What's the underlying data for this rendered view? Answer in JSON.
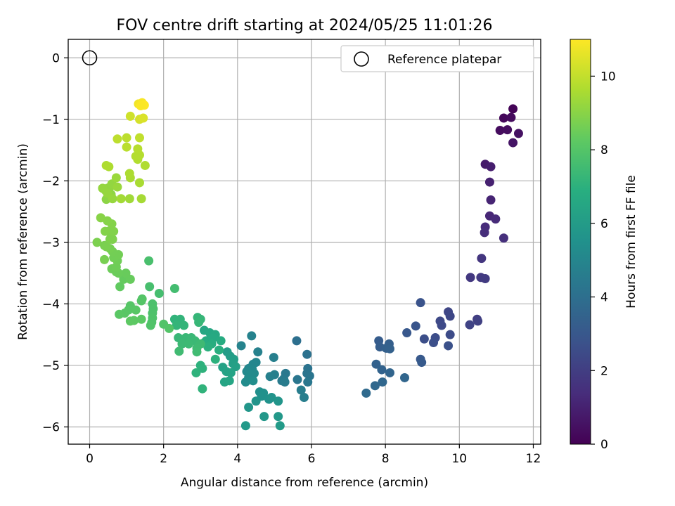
{
  "chart_data": {
    "type": "scatter",
    "title": "FOV centre drift starting at 2024/05/25 11:01:26",
    "xlabel": "Angular distance from reference (arcmin)",
    "ylabel": "Rotation from reference (arcmin)",
    "xlim": [
      -0.58,
      12.2
    ],
    "ylim": [
      -6.28,
      0.3
    ],
    "xticks": [
      0,
      2,
      4,
      6,
      8,
      10,
      12
    ],
    "yticks": [
      0,
      -1,
      -2,
      -3,
      -4,
      -5,
      -6
    ],
    "grid": true,
    "legend": {
      "placement": "top-right",
      "entries": [
        "Reference platepar"
      ]
    },
    "reference_point": {
      "x": 0,
      "y": 0
    },
    "colorbar": {
      "label": "Hours from first FF file",
      "range": [
        0,
        11
      ],
      "ticks": [
        0,
        2,
        4,
        6,
        8,
        10
      ],
      "colormap": "viridis"
    },
    "points": [
      [
        11.45,
        -0.83,
        0.1
      ],
      [
        11.2,
        -0.98,
        0.2
      ],
      [
        11.4,
        -0.97,
        0.3
      ],
      [
        11.1,
        -1.18,
        0.35
      ],
      [
        11.3,
        -1.17,
        0.4
      ],
      [
        11.6,
        -1.23,
        0.5
      ],
      [
        11.45,
        -1.38,
        0.6
      ],
      [
        10.7,
        -1.73,
        0.8
      ],
      [
        10.85,
        -1.77,
        0.9
      ],
      [
        10.82,
        -2.02,
        1.0
      ],
      [
        10.85,
        -2.31,
        1.1
      ],
      [
        10.82,
        -2.57,
        1.2
      ],
      [
        10.98,
        -2.62,
        1.3
      ],
      [
        10.7,
        -2.75,
        1.35
      ],
      [
        10.68,
        -2.84,
        1.4
      ],
      [
        11.2,
        -2.93,
        1.5
      ],
      [
        10.6,
        -3.26,
        1.7
      ],
      [
        10.3,
        -3.57,
        1.8
      ],
      [
        10.58,
        -3.57,
        1.85
      ],
      [
        10.7,
        -3.59,
        1.9
      ],
      [
        10.48,
        -4.25,
        2.0
      ],
      [
        10.5,
        -4.28,
        2.1
      ],
      [
        10.28,
        -4.34,
        2.2
      ],
      [
        9.7,
        -4.13,
        2.3
      ],
      [
        9.75,
        -4.2,
        2.35
      ],
      [
        9.48,
        -4.28,
        2.4
      ],
      [
        9.52,
        -4.35,
        2.45
      ],
      [
        9.75,
        -4.5,
        2.5
      ],
      [
        9.35,
        -4.55,
        2.55
      ],
      [
        9.05,
        -4.57,
        2.6
      ],
      [
        9.3,
        -4.63,
        2.65
      ],
      [
        9.7,
        -4.68,
        2.7
      ],
      [
        8.95,
        -3.98,
        2.8
      ],
      [
        8.82,
        -4.36,
        2.9
      ],
      [
        8.58,
        -4.47,
        3.0
      ],
      [
        8.95,
        -4.9,
        3.05
      ],
      [
        8.98,
        -4.95,
        3.1
      ],
      [
        7.82,
        -4.6,
        3.2
      ],
      [
        7.85,
        -4.7,
        3.25
      ],
      [
        8.1,
        -4.65,
        3.3
      ],
      [
        8.02,
        -4.72,
        3.35
      ],
      [
        8.12,
        -4.73,
        3.4
      ],
      [
        7.75,
        -4.98,
        3.45
      ],
      [
        7.9,
        -5.07,
        3.5
      ],
      [
        8.12,
        -5.12,
        3.55
      ],
      [
        8.52,
        -5.2,
        3.6
      ],
      [
        7.92,
        -5.27,
        3.65
      ],
      [
        7.72,
        -5.33,
        3.7
      ],
      [
        7.48,
        -5.45,
        3.8
      ],
      [
        5.6,
        -4.6,
        4.0
      ],
      [
        5.88,
        -4.82,
        4.1
      ],
      [
        5.9,
        -5.05,
        4.15
      ],
      [
        5.88,
        -5.13,
        4.2
      ],
      [
        5.95,
        -5.17,
        4.25
      ],
      [
        5.62,
        -5.23,
        4.3
      ],
      [
        5.9,
        -5.27,
        4.35
      ],
      [
        5.3,
        -5.13,
        4.4
      ],
      [
        5.25,
        -5.22,
        4.45
      ],
      [
        5.2,
        -5.25,
        4.5
      ],
      [
        5.28,
        -5.27,
        4.55
      ],
      [
        5.72,
        -5.4,
        4.6
      ],
      [
        5.8,
        -5.52,
        4.65
      ],
      [
        4.98,
        -4.87,
        4.7
      ],
      [
        5.0,
        -5.15,
        4.72
      ],
      [
        4.88,
        -5.18,
        4.75
      ],
      [
        4.55,
        -4.78,
        4.8
      ],
      [
        4.38,
        -4.52,
        4.85
      ],
      [
        4.1,
        -4.68,
        4.9
      ],
      [
        4.5,
        -4.95,
        4.95
      ],
      [
        4.42,
        -4.98,
        5.0
      ],
      [
        4.3,
        -5.05,
        5.05
      ],
      [
        4.4,
        -5.07,
        5.1
      ],
      [
        4.25,
        -5.1,
        5.15
      ],
      [
        4.45,
        -5.13,
        5.2
      ],
      [
        4.35,
        -5.15,
        5.22
      ],
      [
        4.3,
        -5.2,
        5.25
      ],
      [
        4.22,
        -5.27,
        5.3
      ],
      [
        4.42,
        -5.25,
        5.35
      ],
      [
        4.6,
        -5.43,
        5.4
      ],
      [
        4.7,
        -5.45,
        5.45
      ],
      [
        4.65,
        -5.5,
        5.5
      ],
      [
        4.85,
        -5.55,
        5.55
      ],
      [
        4.92,
        -5.52,
        5.6
      ],
      [
        4.5,
        -5.58,
        5.65
      ],
      [
        5.1,
        -5.58,
        5.7
      ],
      [
        4.3,
        -5.68,
        5.75
      ],
      [
        4.72,
        -5.83,
        5.8
      ],
      [
        5.1,
        -5.83,
        5.85
      ],
      [
        4.22,
        -5.98,
        5.9
      ],
      [
        5.15,
        -5.98,
        5.95
      ],
      [
        3.72,
        -4.78,
        6.0
      ],
      [
        3.8,
        -4.85,
        6.05
      ],
      [
        3.9,
        -4.9,
        6.1
      ],
      [
        3.88,
        -4.97,
        6.15
      ],
      [
        3.95,
        -5.02,
        6.2
      ],
      [
        3.6,
        -5.03,
        6.25
      ],
      [
        3.7,
        -5.1,
        6.3
      ],
      [
        3.82,
        -5.12,
        6.35
      ],
      [
        3.65,
        -5.27,
        6.4
      ],
      [
        3.78,
        -5.25,
        6.45
      ],
      [
        3.1,
        -4.43,
        6.5
      ],
      [
        3.25,
        -4.47,
        6.55
      ],
      [
        3.4,
        -4.5,
        6.6
      ],
      [
        3.35,
        -4.55,
        6.65
      ],
      [
        3.15,
        -4.6,
        6.7
      ],
      [
        3.55,
        -4.6,
        6.75
      ],
      [
        3.1,
        -4.63,
        6.8
      ],
      [
        3.3,
        -4.65,
        6.85
      ],
      [
        3.5,
        -4.75,
        6.9
      ],
      [
        3.2,
        -4.7,
        6.95
      ],
      [
        3.4,
        -4.9,
        7.0
      ],
      [
        3.0,
        -5.0,
        7.02
      ],
      [
        3.05,
        -5.05,
        7.05
      ],
      [
        2.88,
        -5.12,
        7.08
      ],
      [
        3.05,
        -5.38,
        7.1
      ],
      [
        2.3,
        -4.25,
        7.12
      ],
      [
        2.45,
        -4.25,
        7.15
      ],
      [
        2.55,
        -4.35,
        7.18
      ],
      [
        2.35,
        -4.35,
        7.2
      ],
      [
        2.92,
        -4.22,
        7.22
      ],
      [
        3.0,
        -4.25,
        7.25
      ],
      [
        2.95,
        -4.3,
        7.28
      ],
      [
        2.4,
        -4.55,
        7.3
      ],
      [
        2.6,
        -4.55,
        7.32
      ],
      [
        2.75,
        -4.55,
        7.35
      ],
      [
        2.85,
        -4.6,
        7.38
      ],
      [
        2.5,
        -4.65,
        7.4
      ],
      [
        2.68,
        -4.65,
        7.42
      ],
      [
        3.0,
        -4.65,
        7.45
      ],
      [
        2.9,
        -4.72,
        7.48
      ],
      [
        2.42,
        -4.77,
        7.5
      ],
      [
        2.9,
        -4.78,
        7.52
      ],
      [
        2.3,
        -3.75,
        7.6
      ],
      [
        1.88,
        -3.83,
        7.65
      ],
      [
        1.62,
        -3.72,
        7.7
      ],
      [
        1.6,
        -3.3,
        7.75
      ],
      [
        1.7,
        -4.0,
        7.8
      ],
      [
        1.72,
        -4.08,
        7.82
      ],
      [
        1.7,
        -4.15,
        7.85
      ],
      [
        1.7,
        -4.23,
        7.88
      ],
      [
        1.68,
        -4.3,
        7.9
      ],
      [
        1.65,
        -4.35,
        7.92
      ],
      [
        2.0,
        -4.33,
        7.95
      ],
      [
        2.15,
        -4.4,
        7.98
      ],
      [
        1.42,
        -3.92,
        8.0
      ],
      [
        1.4,
        -3.95,
        8.02
      ],
      [
        1.1,
        -4.03,
        8.05
      ],
      [
        1.05,
        -4.1,
        8.08
      ],
      [
        1.25,
        -4.1,
        8.1
      ],
      [
        0.95,
        -4.15,
        8.12
      ],
      [
        0.8,
        -4.17,
        8.15
      ],
      [
        1.4,
        -4.25,
        8.18
      ],
      [
        1.2,
        -4.27,
        8.2
      ],
      [
        1.1,
        -4.28,
        8.22
      ],
      [
        0.82,
        -3.72,
        8.3
      ],
      [
        0.92,
        -3.6,
        8.35
      ],
      [
        1.1,
        -3.6,
        8.4
      ],
      [
        0.98,
        -3.5,
        8.42
      ],
      [
        0.78,
        -3.5,
        8.45
      ],
      [
        0.72,
        -3.48,
        8.48
      ],
      [
        0.6,
        -3.43,
        8.5
      ],
      [
        0.72,
        -3.4,
        8.52
      ],
      [
        0.75,
        -3.3,
        8.55
      ],
      [
        0.65,
        -3.25,
        8.58
      ],
      [
        0.78,
        -3.2,
        8.6
      ],
      [
        0.62,
        -3.15,
        8.62
      ],
      [
        0.55,
        -3.1,
        8.65
      ],
      [
        0.4,
        -3.28,
        8.7
      ],
      [
        0.4,
        -3.05,
        8.72
      ],
      [
        0.45,
        -3.07,
        8.75
      ],
      [
        0.2,
        -3.0,
        8.78
      ],
      [
        0.55,
        -2.95,
        8.8
      ],
      [
        0.62,
        -2.95,
        8.82
      ],
      [
        0.5,
        -2.82,
        8.85
      ],
      [
        0.65,
        -2.82,
        8.88
      ],
      [
        0.42,
        -2.82,
        8.9
      ],
      [
        0.6,
        -2.7,
        8.92
      ],
      [
        0.48,
        -2.65,
        8.95
      ],
      [
        0.3,
        -2.6,
        8.98
      ],
      [
        0.52,
        -2.25,
        9.0
      ],
      [
        0.45,
        -2.3,
        9.05
      ],
      [
        0.58,
        -2.22,
        9.08
      ],
      [
        0.42,
        -2.15,
        9.1
      ],
      [
        0.48,
        -2.12,
        9.12
      ],
      [
        0.55,
        -2.1,
        9.15
      ],
      [
        0.6,
        -2.05,
        9.18
      ],
      [
        0.35,
        -2.12,
        9.2
      ],
      [
        0.48,
        -2.2,
        9.22
      ],
      [
        0.62,
        -2.29,
        9.25
      ],
      [
        0.75,
        -2.1,
        9.28
      ],
      [
        0.72,
        -1.95,
        9.3
      ],
      [
        1.08,
        -2.29,
        9.4
      ],
      [
        0.85,
        -2.29,
        9.45
      ],
      [
        1.4,
        -2.29,
        9.5
      ],
      [
        1.35,
        -2.03,
        9.55
      ],
      [
        1.1,
        -1.95,
        9.58
      ],
      [
        1.08,
        -1.88,
        9.6
      ],
      [
        0.52,
        -1.77,
        9.62
      ],
      [
        0.45,
        -1.75,
        9.65
      ],
      [
        1.5,
        -1.75,
        9.68
      ],
      [
        1.3,
        -1.65,
        9.7
      ],
      [
        1.25,
        -1.6,
        9.72
      ],
      [
        1.35,
        -1.58,
        9.75
      ],
      [
        1.3,
        -1.48,
        9.78
      ],
      [
        1.0,
        -1.45,
        9.85
      ],
      [
        1.0,
        -1.3,
        9.88
      ],
      [
        0.75,
        -1.32,
        9.9
      ],
      [
        1.35,
        -1.3,
        9.95
      ],
      [
        1.1,
        -0.95,
        10.2
      ],
      [
        1.35,
        -1.0,
        10.3
      ],
      [
        1.45,
        -0.98,
        10.4
      ],
      [
        1.32,
        -0.75,
        10.8
      ],
      [
        1.42,
        -0.73,
        10.9
      ],
      [
        1.48,
        -0.77,
        11.0
      ],
      [
        1.38,
        -0.78,
        10.95
      ]
    ]
  }
}
